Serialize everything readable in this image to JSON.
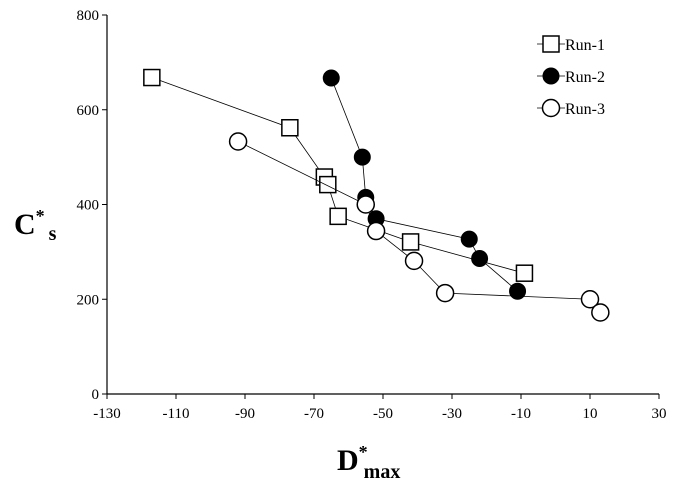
{
  "chart_data": {
    "type": "scatter",
    "title": "",
    "xlabel": {
      "main": "D",
      "sup": "*",
      "sub": "max"
    },
    "ylabel": {
      "main": "C",
      "sup": "*",
      "sub": "s"
    },
    "xlim": [
      -130,
      30
    ],
    "ylim": [
      0,
      800
    ],
    "xticks": [
      -130,
      -110,
      -90,
      -70,
      -50,
      -30,
      -10,
      10,
      30
    ],
    "yticks": [
      0,
      200,
      400,
      600,
      800
    ],
    "grid": false,
    "legend_position": "top-right",
    "series": [
      {
        "name": "Run-1",
        "marker": "square-open",
        "points": [
          [
            -117,
            668
          ],
          [
            -77,
            562
          ],
          [
            -67,
            458
          ],
          [
            -66,
            442
          ],
          [
            -63,
            375
          ],
          [
            -42,
            321
          ],
          [
            -9,
            255
          ]
        ]
      },
      {
        "name": "Run-2",
        "marker": "circle-filled",
        "points": [
          [
            -65,
            667
          ],
          [
            -56,
            500
          ],
          [
            -55,
            415
          ],
          [
            -52,
            370
          ],
          [
            -25,
            327
          ],
          [
            -22,
            286
          ],
          [
            -11,
            217
          ]
        ]
      },
      {
        "name": "Run-3",
        "marker": "circle-open",
        "points": [
          [
            -92,
            533
          ],
          [
            -55,
            400
          ],
          [
            -52,
            344
          ],
          [
            -41,
            281
          ],
          [
            -32,
            213
          ],
          [
            10,
            200
          ],
          [
            13,
            172
          ]
        ]
      }
    ]
  }
}
